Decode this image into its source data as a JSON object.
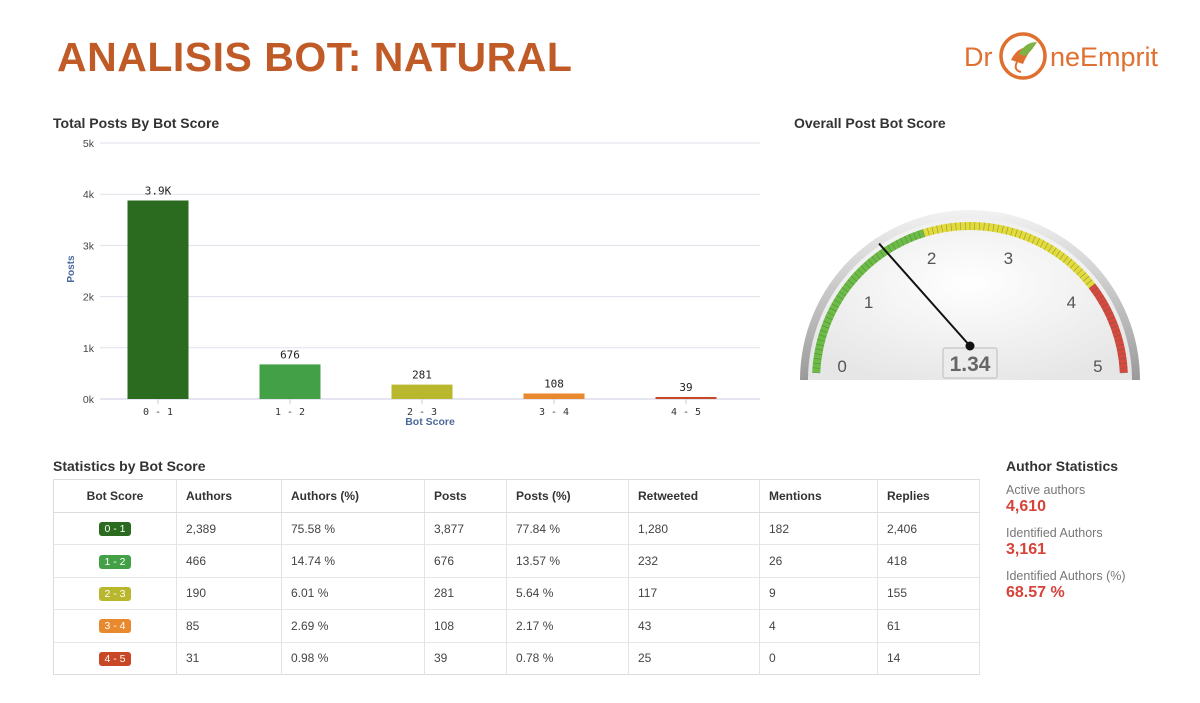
{
  "header": {
    "title": "ANALISIS BOT: NATURAL",
    "logo_left": "Dr",
    "logo_right": "neEmprit"
  },
  "colors": {
    "score_0_1": "#2a6b1f",
    "score_1_2": "#43a047",
    "score_2_3": "#b9b72d",
    "score_3_4": "#e8892e",
    "score_4_5": "#c84724",
    "accent": "#d5433a",
    "title": "#c05a26"
  },
  "bar_section": {
    "title": "Total Posts By Bot Score"
  },
  "chart_data": [
    {
      "type": "bar",
      "title": "Total Posts By Bot Score",
      "categories": [
        "0 - 1",
        "1 - 2",
        "2 - 3",
        "3 - 4",
        "4 - 5"
      ],
      "values": [
        3877,
        676,
        281,
        108,
        39
      ],
      "data_labels": [
        "3.9K",
        "676",
        "281",
        "108",
        "39"
      ],
      "colors": [
        "#2a6b1f",
        "#43a047",
        "#b9b72d",
        "#e8892e",
        "#c84724"
      ],
      "xlabel": "Bot Score",
      "ylabel": "Posts",
      "ylim": [
        0,
        5000
      ],
      "yticks": [
        0,
        1000,
        2000,
        3000,
        4000,
        5000
      ],
      "ytick_labels": [
        "0k",
        "1k",
        "2k",
        "3k",
        "4k",
        "5k"
      ],
      "grid": true,
      "legend": "none"
    },
    {
      "type": "gauge",
      "title": "Overall Post Bot Score",
      "value": 1.34,
      "value_label": "1.34",
      "range": [
        0,
        5
      ],
      "ticks": [
        "0",
        "1",
        "2",
        "3",
        "4",
        "5"
      ],
      "bands": [
        {
          "from": 0,
          "to": 2,
          "color": "#6cbd45"
        },
        {
          "from": 2,
          "to": 4,
          "color": "#e2dc3a"
        },
        {
          "from": 4,
          "to": 5,
          "color": "#d64a3e"
        }
      ]
    }
  ],
  "gauge_section": {
    "title": "Overall Post Bot Score"
  },
  "stats_section": {
    "title": "Statistics by Bot Score",
    "columns": [
      "Bot Score",
      "Authors",
      "Authors (%)",
      "Posts",
      "Posts (%)",
      "Retweeted",
      "Mentions",
      "Replies"
    ],
    "rows": [
      {
        "score": "0 - 1",
        "color": "#2a6b1f",
        "cells": [
          "2,389",
          "75.58 %",
          "3,877",
          "77.84 %",
          "1,280",
          "182",
          "2,406"
        ]
      },
      {
        "score": "1 - 2",
        "color": "#43a047",
        "cells": [
          "466",
          "14.74 %",
          "676",
          "13.57 %",
          "232",
          "26",
          "418"
        ]
      },
      {
        "score": "2 - 3",
        "color": "#b9b72d",
        "cells": [
          "190",
          "6.01 %",
          "281",
          "5.64 %",
          "117",
          "9",
          "155"
        ]
      },
      {
        "score": "3 - 4",
        "color": "#e8892e",
        "cells": [
          "85",
          "2.69 %",
          "108",
          "2.17 %",
          "43",
          "4",
          "61"
        ]
      },
      {
        "score": "4 - 5",
        "color": "#c84724",
        "cells": [
          "31",
          "0.98 %",
          "39",
          "0.78 %",
          "25",
          "0",
          "14"
        ]
      }
    ]
  },
  "author_stats": {
    "title": "Author Statistics",
    "items": [
      {
        "label": "Active authors",
        "value": "4,610"
      },
      {
        "label": "Identified Authors",
        "value": "3,161"
      },
      {
        "label": "Identified Authors (%)",
        "value": "68.57 %"
      }
    ]
  }
}
